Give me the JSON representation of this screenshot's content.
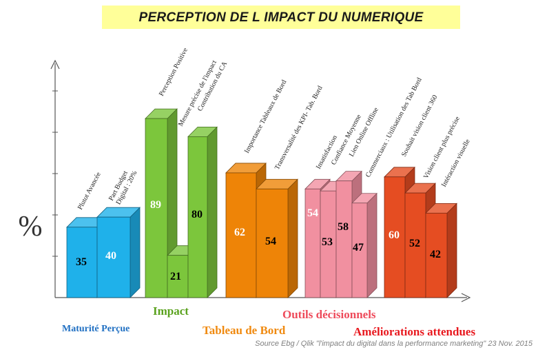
{
  "title": "PERCEPTION DE L IMPACT DU NUMERIQUE",
  "source": "Source Ebg / Qlik \"l'impact du digital dans la performance marketing\" 23 Nov. 2015",
  "chart_data": {
    "type": "bar",
    "ylabel": "%",
    "ylim": [
      0,
      100
    ],
    "groups": [
      {
        "name": "Maturité Perçue",
        "color": "#1fb1ea",
        "label_color": "#1f6fc2",
        "bars": [
          {
            "label": [
              "Plutot Avancée"
            ],
            "value": 35
          },
          {
            "label": [
              "Part Budget",
              "Digital : 20%"
            ],
            "value": 40
          }
        ]
      },
      {
        "name": "Impact",
        "color": "#7cc63c",
        "label_color": "#5aa21e",
        "bars": [
          {
            "label": [
              "Perception Positive"
            ],
            "value": 89
          },
          {
            "label": [
              "Mesure précise de l'impact"
            ],
            "value": 21
          },
          {
            "label": [
              "Contribution du CA"
            ],
            "value": 80
          }
        ]
      },
      {
        "name": "Tableau de Bord",
        "color": "#ee8407",
        "label_color": "#f08a10",
        "bars": [
          {
            "label": [
              "Importance Tableaux de Bord"
            ],
            "value": 62
          },
          {
            "label": [
              "Transversalité des KPI- Tab. Bord"
            ],
            "value": 54
          }
        ]
      },
      {
        "name": "Outils décisionnels",
        "color": "#f190a0",
        "label_color": "#ee4a5a",
        "bars": [
          {
            "label": [
              "Insatisfaction"
            ],
            "value": 54
          },
          {
            "label": [
              "Confiance Moyenne"
            ],
            "value": 53
          },
          {
            "label": [
              "Lien Online Offline"
            ],
            "value": 58
          },
          {
            "label": [
              "Commerciaux : Utilisation des Tab Bord"
            ],
            "value": 47
          }
        ]
      },
      {
        "name": "Améliorations attendues",
        "color": "#e54d22",
        "label_color": "#e8181e",
        "bars": [
          {
            "label": [
              "Souhait vision client 360"
            ],
            "value": 60
          },
          {
            "label": [
              "Vision client plus précise"
            ],
            "value": 52
          },
          {
            "label": [
              "Intéraction visuelle"
            ],
            "value": 42
          }
        ]
      }
    ]
  }
}
